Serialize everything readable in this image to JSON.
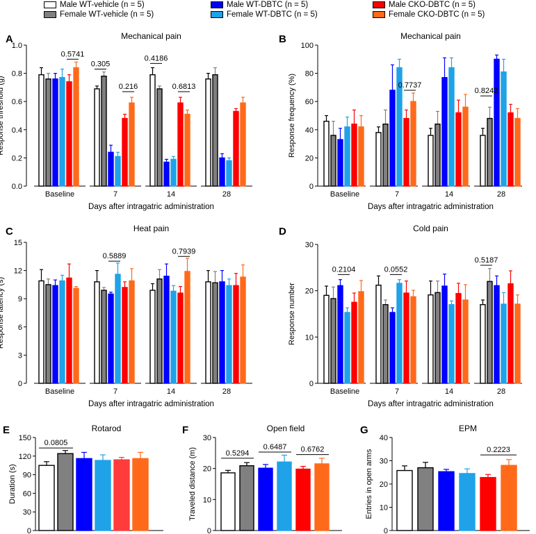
{
  "legend": [
    {
      "label": "Male WT-vehicle (n = 5)",
      "color": "#ffffff"
    },
    {
      "label": "Female WT-vehicle (n = 5)",
      "color": "#808080"
    },
    {
      "label": "Male WT-DBTC (n = 5)",
      "color": "#0000ff"
    },
    {
      "label": "Female WT-DBTC (n = 5)",
      "color": "#1fa2e8"
    },
    {
      "label": "Male CKO-DBTC (n = 5)",
      "color": "#ff0000"
    },
    {
      "label": "Female CKO-DBTC (n = 5)",
      "color": "#ff6a1a"
    }
  ],
  "chart_data": [
    {
      "panel": "A",
      "type": "bar",
      "title": "Mechanical pain",
      "xlabel": "Days after intragatric administration",
      "ylabel": "Response threshold (g)",
      "categories": [
        "Baseline",
        "7",
        "14",
        "28"
      ],
      "ylim": [
        0,
        1.0
      ],
      "yticks": [
        "0.0",
        "0.2",
        "0.4",
        "0.6",
        "0.8",
        "1.0"
      ],
      "series": [
        {
          "name": "Male WT-vehicle",
          "values": [
            0.79,
            0.69,
            0.79,
            0.76
          ],
          "errors": [
            0.05,
            0.02,
            0.05,
            0.04
          ]
        },
        {
          "name": "Female WT-vehicle",
          "values": [
            0.76,
            0.78,
            0.69,
            0.79
          ],
          "errors": [
            0.04,
            0.03,
            0.02,
            0.05
          ]
        },
        {
          "name": "Male WT-DBTC",
          "values": [
            0.76,
            0.24,
            0.17,
            0.2
          ],
          "errors": [
            0.04,
            0.05,
            0.02,
            0.03
          ]
        },
        {
          "name": "Female WT-DBTC",
          "values": [
            0.77,
            0.21,
            0.19,
            0.18
          ],
          "errors": [
            0.06,
            0.03,
            0.02,
            0.02
          ]
        },
        {
          "name": "Male CKO-DBTC",
          "values": [
            0.74,
            0.48,
            0.59,
            0.53
          ],
          "errors": [
            0.05,
            0.03,
            0.04,
            0.02
          ]
        },
        {
          "name": "Female CKO-DBTC",
          "values": [
            0.84,
            0.59,
            0.51,
            0.59
          ],
          "errors": [
            0.04,
            0.04,
            0.03,
            0.04
          ]
        }
      ],
      "annotations": [
        {
          "label": "0.5741",
          "group": 0,
          "from": 4,
          "to": 5,
          "y": 0.9
        },
        {
          "label": "0.305",
          "group": 1,
          "from": 0,
          "to": 1,
          "y": 0.83
        },
        {
          "label": "0.216",
          "group": 1,
          "from": 4,
          "to": 5,
          "y": 0.67
        },
        {
          "label": "0.4186",
          "group": 2,
          "from": 0,
          "to": 1,
          "y": 0.87
        },
        {
          "label": "0.6813",
          "group": 2,
          "from": 4,
          "to": 5,
          "y": 0.67
        }
      ]
    },
    {
      "panel": "B",
      "type": "bar",
      "title": "Mechanical pain",
      "xlabel": "Days after intragatric administration",
      "ylabel": "Response frequency (%)",
      "categories": [
        "Baseline",
        "7",
        "14",
        "28"
      ],
      "ylim": [
        0,
        100
      ],
      "yticks": [
        "0",
        "20",
        "40",
        "60",
        "80",
        "100"
      ],
      "series": [
        {
          "name": "Male WT-vehicle",
          "values": [
            46,
            38,
            36,
            36
          ],
          "errors": [
            4,
            4,
            5,
            5
          ]
        },
        {
          "name": "Female WT-vehicle",
          "values": [
            36,
            44,
            44,
            48
          ],
          "errors": [
            10,
            10,
            9,
            8
          ]
        },
        {
          "name": "Male WT-DBTC",
          "values": [
            33,
            68,
            77,
            90
          ],
          "errors": [
            8,
            18,
            14,
            3
          ]
        },
        {
          "name": "Female WT-DBTC",
          "values": [
            42,
            84,
            84,
            81
          ],
          "errors": [
            7,
            6,
            7,
            9
          ]
        },
        {
          "name": "Male CKO-DBTC",
          "values": [
            44,
            48,
            52,
            52
          ],
          "errors": [
            10,
            6,
            9,
            6
          ]
        },
        {
          "name": "Female CKO-DBTC",
          "values": [
            42,
            60,
            56,
            48
          ],
          "errors": [
            8,
            6,
            9,
            7
          ]
        }
      ],
      "annotations": [
        {
          "label": "0.7737",
          "group": 1,
          "from": 4,
          "to": 5,
          "y": 68
        },
        {
          "label": "0.8242",
          "group": 3,
          "from": 0,
          "to": 1,
          "y": 64
        }
      ]
    },
    {
      "panel": "C",
      "type": "bar",
      "title": "Heat pain",
      "xlabel": "Days after intragatric administration",
      "ylabel": "Response latency (s)",
      "categories": [
        "Baseline",
        "7",
        "14",
        "28"
      ],
      "ylim": [
        0,
        15
      ],
      "yticks": [
        "0",
        "3",
        "6",
        "9",
        "12",
        "15"
      ],
      "series": [
        {
          "name": "Male WT-vehicle",
          "values": [
            10.9,
            10.8,
            9.9,
            10.8
          ],
          "errors": [
            1.2,
            1.2,
            0.7,
            1.2
          ]
        },
        {
          "name": "Female WT-vehicle",
          "values": [
            10.5,
            9.9,
            11.1,
            10.7
          ],
          "errors": [
            0.6,
            0.3,
            1.0,
            1.2
          ]
        },
        {
          "name": "Male WT-DBTC",
          "values": [
            10.4,
            9.5,
            11.4,
            10.8
          ],
          "errors": [
            0.6,
            0.2,
            1.3,
            1.2
          ]
        },
        {
          "name": "Female WT-DBTC",
          "values": [
            10.9,
            11.6,
            9.8,
            10.4
          ],
          "errors": [
            0.6,
            1.2,
            0.6,
            0.7
          ]
        },
        {
          "name": "Male CKO-DBTC",
          "values": [
            11.2,
            10.2,
            9.6,
            10.4
          ],
          "errors": [
            1.5,
            0.6,
            0.7,
            1.3
          ]
        },
        {
          "name": "Female CKO-DBTC",
          "values": [
            10.1,
            10.9,
            11.9,
            11.3
          ],
          "errors": [
            0.2,
            1.3,
            1.4,
            1.3
          ]
        }
      ],
      "annotations": [
        {
          "label": "0.5889",
          "group": 1,
          "from": 2,
          "to": 3,
          "y": 13.0
        },
        {
          "label": "0.7939",
          "group": 2,
          "from": 4,
          "to": 5,
          "y": 13.5
        }
      ]
    },
    {
      "panel": "D",
      "type": "bar",
      "title": "Cold pain",
      "xlabel": "Days after intragatric administration",
      "ylabel": "Response number",
      "categories": [
        "Baseline",
        "7",
        "14",
        "28"
      ],
      "ylim": [
        0,
        30
      ],
      "yticks": [
        "0",
        "10",
        "20",
        "30"
      ],
      "series": [
        {
          "name": "Male WT-vehicle",
          "values": [
            19.0,
            21.2,
            19.1,
            17.0
          ],
          "errors": [
            2.0,
            2.0,
            3.0,
            1.0
          ]
        },
        {
          "name": "Female WT-vehicle",
          "values": [
            18.3,
            17.0,
            19.6,
            22.0
          ],
          "errors": [
            2.5,
            1.0,
            2.5,
            2.8
          ]
        },
        {
          "name": "Male WT-DBTC",
          "values": [
            21.1,
            15.3,
            21.0,
            21.1
          ],
          "errors": [
            1.3,
            1.0,
            2.6,
            2.1
          ]
        },
        {
          "name": "Female WT-DBTC",
          "values": [
            15.3,
            21.6,
            17.0,
            17.1
          ],
          "errors": [
            1.0,
            0.8,
            0.8,
            2.5
          ]
        },
        {
          "name": "Male CKO-DBTC",
          "values": [
            17.5,
            19.5,
            19.4,
            21.5
          ],
          "errors": [
            2.0,
            2.6,
            2.2,
            2.8
          ]
        },
        {
          "name": "Female CKO-DBTC",
          "values": [
            19.8,
            18.7,
            18.0,
            17.1
          ],
          "errors": [
            2.4,
            1.4,
            3.3,
            2.0
          ]
        }
      ],
      "annotations": [
        {
          "label": "0.2104",
          "group": 0,
          "from": 2,
          "to": 3,
          "y": 23.5
        },
        {
          "label": "0.0552",
          "group": 1,
          "from": 2,
          "to": 3,
          "y": 23.5
        },
        {
          "label": "0.5187",
          "group": 3,
          "from": 0,
          "to": 1,
          "y": 25.5
        }
      ]
    },
    {
      "panel": "E",
      "type": "bar",
      "title": "Rotarod",
      "xlabel": "",
      "ylabel": "Duration (s)",
      "categories": [
        "Male WT-vehicle",
        "Female WT-vehicle",
        "Male WT-DBTC",
        "Female WT-DBTC",
        "Male CKO-DBTC",
        "Female CKO-DBTC"
      ],
      "values": [
        105,
        124,
        116,
        113,
        114,
        116
      ],
      "errors": [
        6,
        5,
        10,
        9,
        4,
        10
      ],
      "colors": [
        "#ffffff",
        "#808080",
        "#0000ff",
        "#1fa2e8",
        "#ff3b3b",
        "#ff6a1a"
      ],
      "ylim": [
        0,
        150
      ],
      "yticks": [
        "0",
        "30",
        "60",
        "90",
        "120",
        "150"
      ],
      "annotations": [
        {
          "label": "0.0805",
          "from": 0,
          "to": 1,
          "y": 133
        }
      ]
    },
    {
      "panel": "F",
      "type": "bar",
      "title": "Open field",
      "xlabel": "",
      "ylabel": "Traveled distance (m)",
      "categories": [
        "Male WT-vehicle",
        "Female WT-vehicle",
        "Male WT-DBTC",
        "Female WT-DBTC",
        "Male CKO-DBTC",
        "Female CKO-DBTC"
      ],
      "values": [
        18.6,
        20.9,
        20.1,
        22.1,
        19.8,
        21.5
      ],
      "errors": [
        0.8,
        1.0,
        1.2,
        2.2,
        0.9,
        1.8
      ],
      "colors": [
        "#ffffff",
        "#808080",
        "#0000ff",
        "#1fa2e8",
        "#ff0000",
        "#ff6a1a"
      ],
      "ylim": [
        0,
        30
      ],
      "yticks": [
        "0",
        "10",
        "20",
        "30"
      ],
      "annotations": [
        {
          "label": "0.5294",
          "from": 0,
          "to": 1,
          "y": 23.3
        },
        {
          "label": "0.6487",
          "from": 2,
          "to": 3,
          "y": 25.3
        },
        {
          "label": "0.6762",
          "from": 4,
          "to": 5,
          "y": 24.5
        }
      ]
    },
    {
      "panel": "G",
      "type": "bar",
      "title": "EPM",
      "xlabel": "",
      "ylabel": "Entries in open arms",
      "categories": [
        "Male WT-vehicle",
        "Female WT-vehicle",
        "Male WT-DBTC",
        "Female WT-DBTC",
        "Male CKO-DBTC",
        "Female CKO-DBTC"
      ],
      "values": [
        25.8,
        27.0,
        25.3,
        24.5,
        22.8,
        28.0
      ],
      "errors": [
        2.0,
        2.3,
        1.0,
        2.0,
        1.3,
        2.5
      ],
      "colors": [
        "#ffffff",
        "#808080",
        "#0000ff",
        "#1fa2e8",
        "#ff0000",
        "#ff6a1a"
      ],
      "ylim": [
        0,
        40
      ],
      "yticks": [
        "0",
        "10",
        "20",
        "30",
        "40"
      ],
      "annotations": [
        {
          "label": "0.2223",
          "from": 4,
          "to": 5,
          "y": 32.5
        }
      ]
    }
  ]
}
